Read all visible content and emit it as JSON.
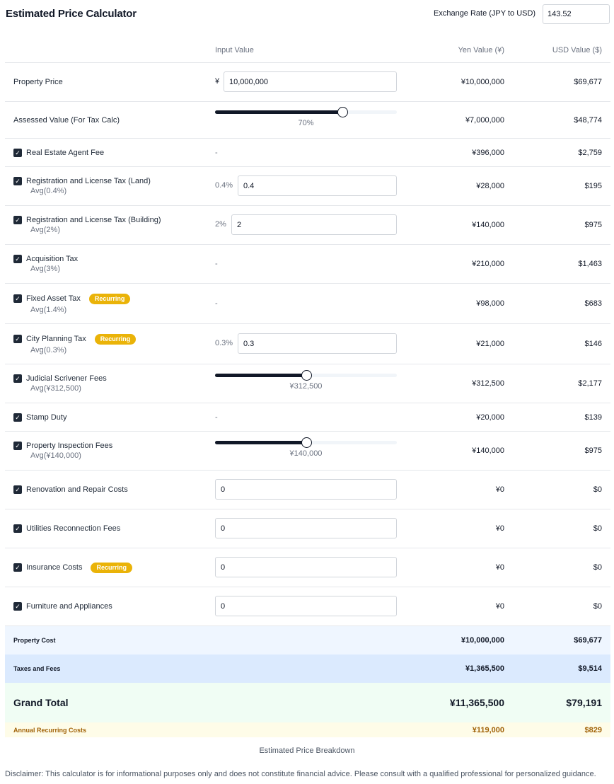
{
  "title": "Estimated Price Calculator",
  "exchange_rate": {
    "label": "Exchange Rate (JPY to USD)",
    "value": "143.52"
  },
  "columns": {
    "input": "Input Value",
    "yen": "Yen Value (¥)",
    "usd": "USD Value ($)"
  },
  "rows": [
    {
      "label": "Property Price",
      "checkbox": false,
      "avg": "",
      "recurring": false,
      "input_kind": "text",
      "input_prefix": "¥",
      "input_value": "10,000,000",
      "yen": "¥10,000,000",
      "usd": "$69,677"
    },
    {
      "label": "Assessed Value (For Tax Calc)",
      "checkbox": false,
      "avg": "",
      "recurring": false,
      "input_kind": "slider",
      "slider_percent": 70,
      "slider_label": "70%",
      "yen": "¥7,000,000",
      "usd": "$48,774"
    },
    {
      "label": "Real Estate Agent Fee",
      "checkbox": true,
      "avg": "",
      "recurring": false,
      "input_kind": "dash",
      "input_value": "-",
      "yen": "¥396,000",
      "usd": "$2,759"
    },
    {
      "label": "Registration and License Tax (Land)",
      "checkbox": true,
      "avg": "Avg(0.4%)",
      "recurring": false,
      "input_kind": "text",
      "input_prefix": "0.4%",
      "input_value": "0.4",
      "yen": "¥28,000",
      "usd": "$195"
    },
    {
      "label": "Registration and License Tax (Building)",
      "checkbox": true,
      "avg": "Avg(2%)",
      "recurring": false,
      "input_kind": "text",
      "input_prefix": "2%",
      "input_value": "2",
      "yen": "¥140,000",
      "usd": "$975"
    },
    {
      "label": "Acquisition Tax",
      "checkbox": true,
      "avg": "Avg(3%)",
      "recurring": false,
      "input_kind": "dash",
      "input_value": "-",
      "yen": "¥210,000",
      "usd": "$1,463"
    },
    {
      "label": "Fixed Asset Tax",
      "checkbox": true,
      "avg": "Avg(1.4%)",
      "recurring": true,
      "input_kind": "dash",
      "input_value": "-",
      "yen": "¥98,000",
      "usd": "$683"
    },
    {
      "label": "City Planning Tax",
      "checkbox": true,
      "avg": "Avg(0.3%)",
      "recurring": true,
      "input_kind": "text",
      "input_prefix": "0.3%",
      "input_value": "0.3",
      "yen": "¥21,000",
      "usd": "$146"
    },
    {
      "label": "Judicial Scrivener Fees",
      "checkbox": true,
      "avg": "Avg(¥312,500)",
      "recurring": false,
      "input_kind": "slider",
      "slider_percent": 50,
      "slider_label": "¥312,500",
      "yen": "¥312,500",
      "usd": "$2,177"
    },
    {
      "label": "Stamp Duty",
      "checkbox": true,
      "avg": "",
      "recurring": false,
      "input_kind": "dash",
      "input_value": "-",
      "yen": "¥20,000",
      "usd": "$139"
    },
    {
      "label": "Property Inspection Fees",
      "checkbox": true,
      "avg": "Avg(¥140,000)",
      "recurring": false,
      "input_kind": "slider",
      "slider_percent": 50,
      "slider_label": "¥140,000",
      "yen": "¥140,000",
      "usd": "$975"
    },
    {
      "label": "Renovation and Repair Costs",
      "checkbox": true,
      "avg": "",
      "recurring": false,
      "input_kind": "text",
      "input_prefix": "",
      "input_value": "0",
      "yen": "¥0",
      "usd": "$0"
    },
    {
      "label": "Utilities Reconnection Fees",
      "checkbox": true,
      "avg": "",
      "recurring": false,
      "input_kind": "text",
      "input_prefix": "",
      "input_value": "0",
      "yen": "¥0",
      "usd": "$0"
    },
    {
      "label": "Insurance Costs",
      "checkbox": true,
      "avg": "",
      "recurring": true,
      "input_kind": "text",
      "input_prefix": "",
      "input_value": "0",
      "yen": "¥0",
      "usd": "$0"
    },
    {
      "label": "Furniture and Appliances",
      "checkbox": true,
      "avg": "",
      "recurring": false,
      "input_kind": "text",
      "input_prefix": "",
      "input_value": "0",
      "yen": "¥0",
      "usd": "$0"
    }
  ],
  "recurring_badge": "Recurring",
  "summary": {
    "property_cost": {
      "label": "Property Cost",
      "yen": "¥10,000,000",
      "usd": "$69,677"
    },
    "taxes_fees": {
      "label": "Taxes and Fees",
      "yen": "¥1,365,500",
      "usd": "$9,514"
    },
    "grand_total": {
      "label": "Grand Total",
      "yen": "¥11,365,500",
      "usd": "$79,191"
    },
    "annual_recurring": {
      "label": "Annual Recurring Costs",
      "yen": "¥119,000",
      "usd": "$829"
    }
  },
  "breakdown_label": "Estimated Price Breakdown",
  "disclaimer": "Disclaimer: This calculator is for informational purposes only and does not constitute financial advice. Please consult with a qualified professional for personalized guidance.",
  "colors": {
    "property_cost_bg": "#eff6ff",
    "taxes_fees_bg": "#dbeafe",
    "grand_total_bg": "#f0fdf4",
    "annual_recurring_bg": "#fefce8",
    "annual_recurring_text": "#a16207",
    "badge": "#eab308"
  }
}
